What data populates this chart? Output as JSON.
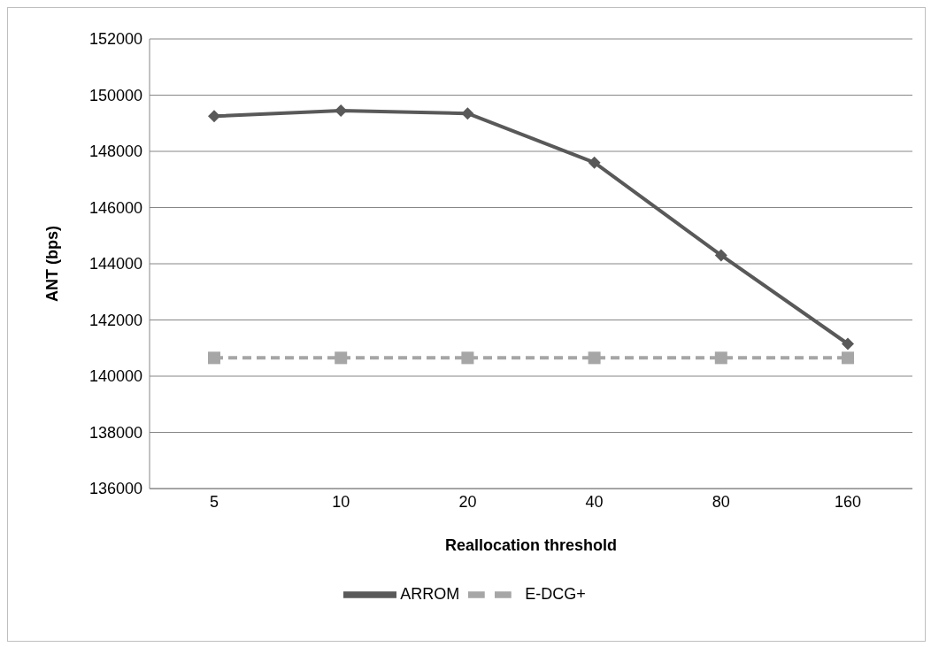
{
  "chart_data": {
    "type": "line",
    "xlabel": "Reallocation threshold",
    "ylabel": "ANT (bps)",
    "categories": [
      "5",
      "10",
      "20",
      "40",
      "80",
      "160"
    ],
    "series": [
      {
        "name": "ARROM",
        "color": "#595959",
        "marker": "diamond",
        "line_style": "solid",
        "values": [
          149250,
          149450,
          149350,
          147600,
          144300,
          141150
        ]
      },
      {
        "name": "E-DCG+",
        "color": "#a6a6a6",
        "marker": "square",
        "line_style": "dashed",
        "values": [
          140650,
          140650,
          140650,
          140650,
          140650,
          140650
        ]
      }
    ],
    "ylim": [
      136000,
      152000
    ],
    "yticks": [
      136000,
      138000,
      140000,
      142000,
      144000,
      146000,
      148000,
      150000,
      152000
    ],
    "grid": "y",
    "legend": "bottom"
  }
}
